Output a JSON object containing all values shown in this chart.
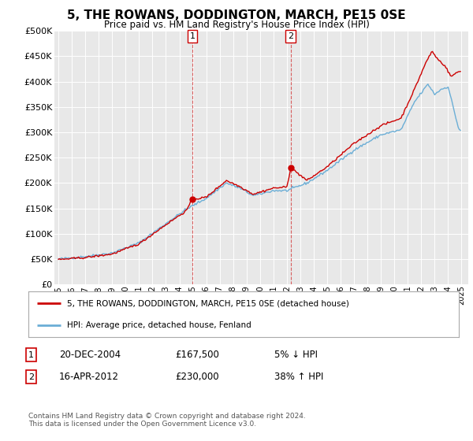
{
  "title": "5, THE ROWANS, DODDINGTON, MARCH, PE15 0SE",
  "subtitle": "Price paid vs. HM Land Registry's House Price Index (HPI)",
  "ylabel_ticks": [
    "£0",
    "£50K",
    "£100K",
    "£150K",
    "£200K",
    "£250K",
    "£300K",
    "£350K",
    "£400K",
    "£450K",
    "£500K"
  ],
  "ytick_values": [
    0,
    50000,
    100000,
    150000,
    200000,
    250000,
    300000,
    350000,
    400000,
    450000,
    500000
  ],
  "ylim": [
    0,
    500000
  ],
  "xlim_start": 1994.7,
  "xlim_end": 2025.5,
  "hpi_color": "#6baed6",
  "price_color": "#cc0000",
  "sale1_x": 2004.97,
  "sale1_y": 167500,
  "sale2_x": 2012.29,
  "sale2_y": 230000,
  "legend_line1": "5, THE ROWANS, DODDINGTON, MARCH, PE15 0SE (detached house)",
  "legend_line2": "HPI: Average price, detached house, Fenland",
  "footnote": "Contains HM Land Registry data © Crown copyright and database right 2024.\nThis data is licensed under the Open Government Licence v3.0.",
  "background_color": "#ffffff",
  "plot_bg_color": "#e8e8e8"
}
